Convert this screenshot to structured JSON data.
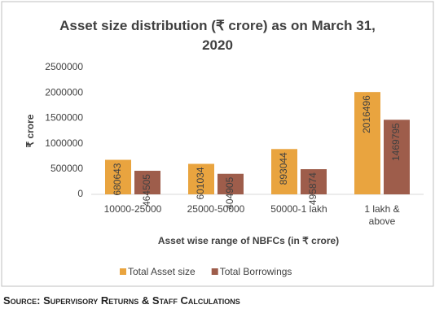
{
  "chart_data": {
    "type": "bar",
    "title": "Asset size distribution (₹ crore) as on March 31, 2020",
    "x_label": "Asset wise range of NBFCs (in ₹ crore)",
    "y_label": "₹ crore",
    "categories": [
      "10000-25000",
      "25000-50000",
      "50000-1 lakh",
      "1 lakh & above"
    ],
    "series": [
      {
        "name": "Total Asset size",
        "color": "#e9a43f",
        "values": [
          680643,
          601034,
          893044,
          2016496
        ]
      },
      {
        "name": "Total Borrowings",
        "color": "#9e5d4b",
        "values": [
          464505,
          404905,
          495874,
          1469795
        ]
      }
    ],
    "ylim": [
      0,
      2500000
    ],
    "yticks": [
      0,
      500000,
      1000000,
      1500000,
      2000000,
      2500000
    ],
    "legend": "bottom"
  },
  "source": "Source: Supervisory Returns & Staff Calculations"
}
